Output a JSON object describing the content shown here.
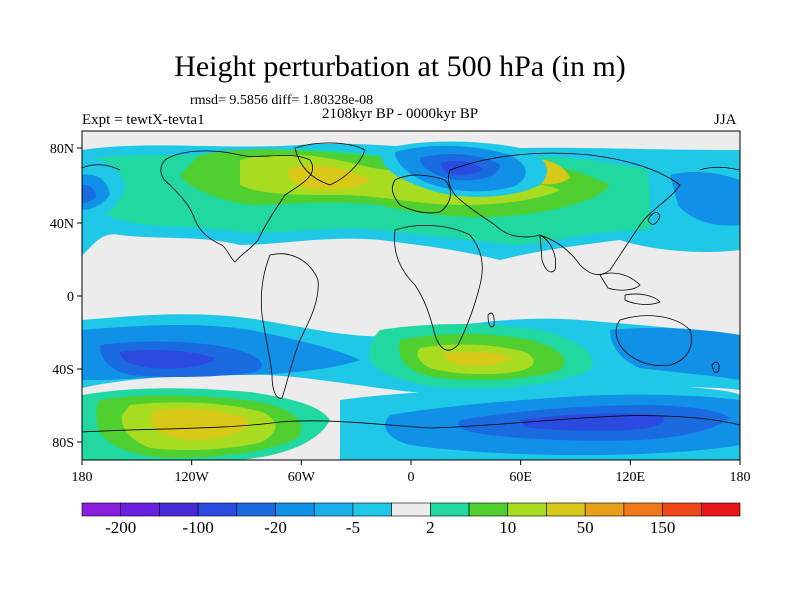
{
  "title": "Height perturbation at 500 hPa (in m)",
  "stats_line": "rmsd= 9.5856 diff= 1.80328e-08",
  "experiment": "Expt = tewtX-tevta1",
  "period": "2108kyr BP - 0000kyr BP",
  "season": "JJA",
  "lat_ticks": [
    "80N",
    "40N",
    "0",
    "40S",
    "80S"
  ],
  "lon_ticks": [
    "180",
    "120W",
    "60W",
    "0",
    "60E",
    "120E",
    "180"
  ],
  "colorbar": {
    "colors": [
      "#8a1fe0",
      "#6a20e0",
      "#4a2ad8",
      "#2a4ae0",
      "#1a6ae0",
      "#1090e6",
      "#18b0ea",
      "#20c8e8",
      "#ececec",
      "#20d8a0",
      "#50d030",
      "#a8dc20",
      "#d8c818",
      "#e8a018",
      "#f07818",
      "#f04818",
      "#e81818"
    ],
    "labels": [
      "-200",
      "-100",
      "-20",
      "-5",
      "2",
      "10",
      "50",
      "150"
    ]
  },
  "legend_colors": {
    "background": "#ececec",
    "land_outline": "#000000"
  }
}
